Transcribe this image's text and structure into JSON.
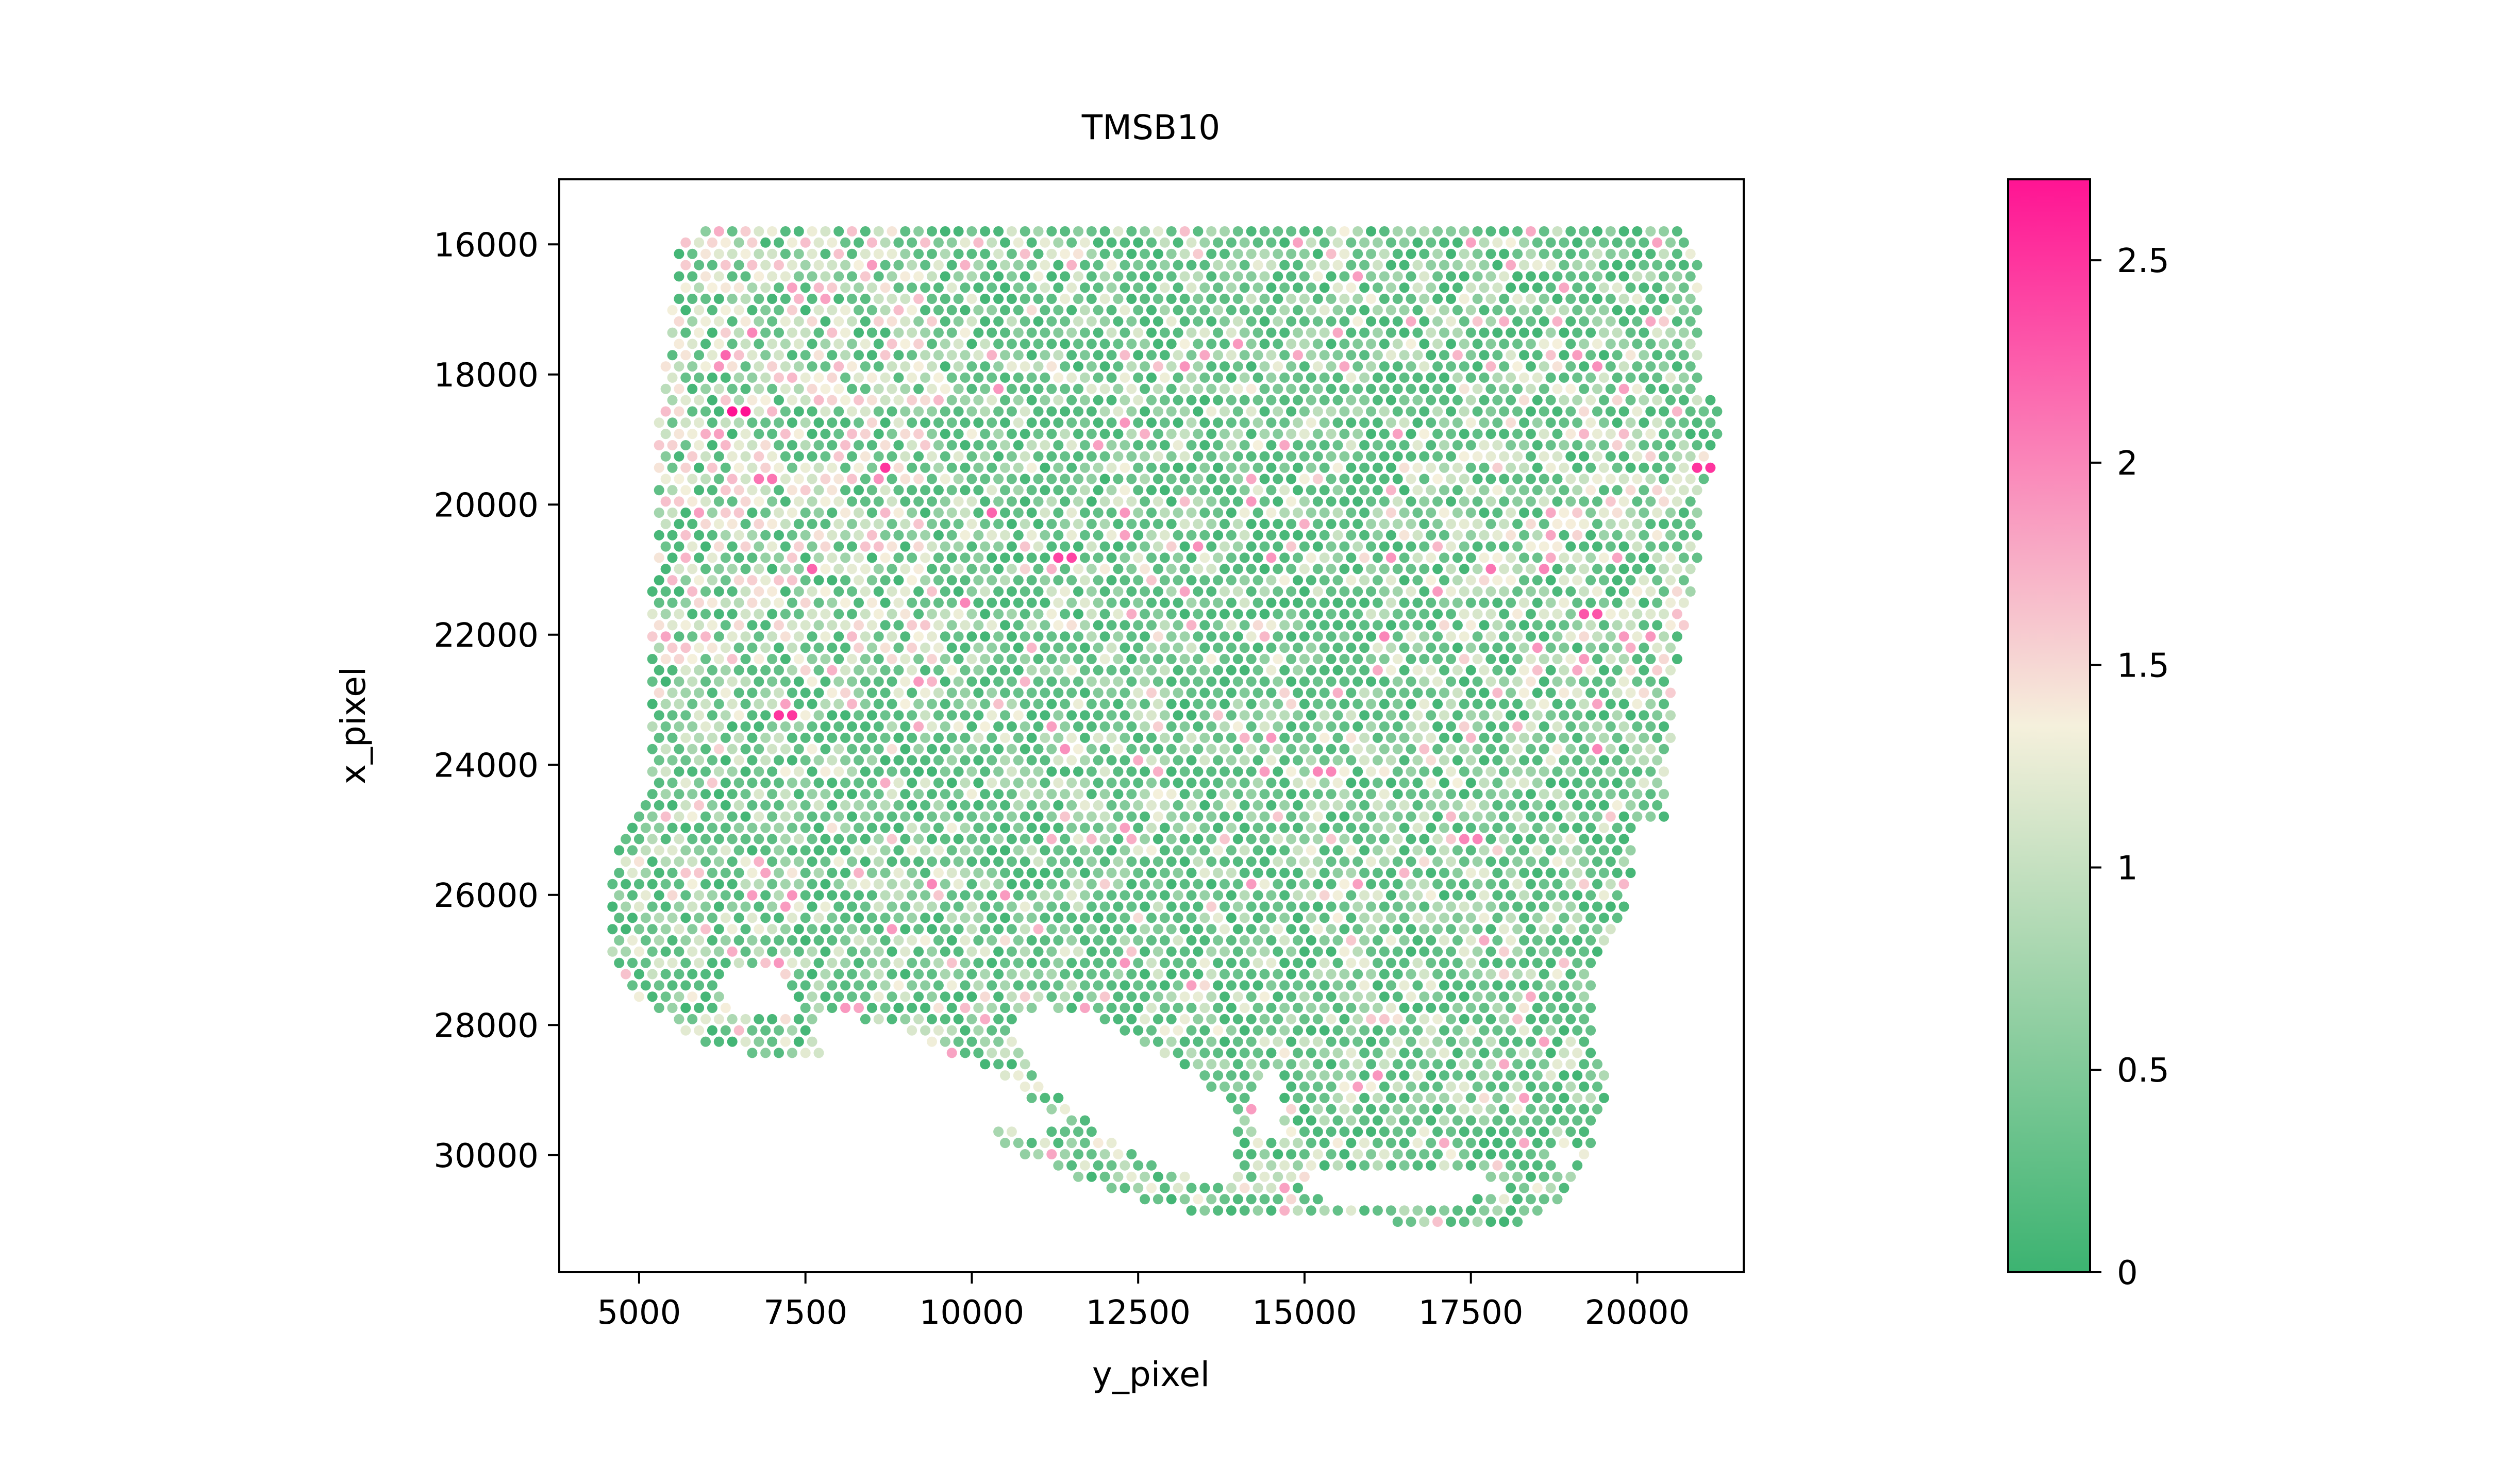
{
  "chart_data": {
    "type": "scatter",
    "title": "TMSB10",
    "xlabel": "y_pixel",
    "ylabel": "x_pixel",
    "xlim": [
      3800,
      21600
    ],
    "ylim": [
      31800,
      15000
    ],
    "y_inverted": true,
    "x_ticks": [
      5000,
      7500,
      10000,
      12500,
      15000,
      17500,
      20000
    ],
    "x_tick_labels": [
      "5000",
      "7500",
      "10000",
      "12500",
      "15000",
      "17500",
      "20000"
    ],
    "y_ticks": [
      16000,
      18000,
      20000,
      22000,
      24000,
      26000,
      28000,
      30000
    ],
    "y_tick_labels": [
      "16000",
      "18000",
      "20000",
      "22000",
      "24000",
      "26000",
      "28000",
      "30000"
    ],
    "grid": false,
    "point_style": "hexagonal grid of spots, spacing about 200 data units",
    "colorbar": {
      "min": 0,
      "max": 2.7,
      "ticks": [
        0,
        0.5,
        1,
        1.5,
        2,
        2.5
      ],
      "tick_labels": [
        "0",
        "0.5",
        "1",
        "1.5",
        "2",
        "2.5"
      ],
      "colors": [
        "#3cb371",
        "#f5f0dc",
        "#ff1493"
      ]
    },
    "tissue_outline": [
      [
        5300,
        18700
      ],
      [
        5600,
        16000
      ],
      [
        6000,
        15800
      ],
      [
        20700,
        15800
      ],
      [
        21000,
        16100
      ],
      [
        21000,
        18300
      ],
      [
        21300,
        18500
      ],
      [
        21200,
        19000
      ],
      [
        21000,
        19900
      ],
      [
        21000,
        20400
      ],
      [
        20800,
        21400
      ],
      [
        20600,
        22600
      ],
      [
        20500,
        23800
      ],
      [
        20400,
        24800
      ],
      [
        20000,
        25000
      ],
      [
        19800,
        26500
      ],
      [
        19400,
        27200
      ],
      [
        19400,
        28300
      ],
      [
        19600,
        28900
      ],
      [
        19300,
        30000
      ],
      [
        18800,
        30700
      ],
      [
        18200,
        31100
      ],
      [
        17500,
        31100
      ],
      [
        16600,
        31100
      ],
      [
        15700,
        30900
      ],
      [
        15000,
        30900
      ],
      [
        14000,
        31000
      ],
      [
        12500,
        30700
      ],
      [
        11000,
        30100
      ],
      [
        10500,
        29900
      ],
      [
        9500,
        28500
      ],
      [
        8700,
        28300
      ],
      [
        8200,
        28600
      ],
      [
        6900,
        28600
      ],
      [
        6500,
        28400
      ],
      [
        5800,
        28200
      ],
      [
        5000,
        27600
      ],
      [
        4600,
        27100
      ],
      [
        4500,
        26100
      ],
      [
        4700,
        25200
      ],
      [
        5200,
        24400
      ],
      [
        5100,
        21800
      ],
      [
        5300,
        20400
      ]
    ],
    "holes": [
      {
        "outline": [
          [
            6300,
            27200
          ],
          [
            6600,
            27100
          ],
          [
            7100,
            27200
          ],
          [
            7300,
            27400
          ],
          [
            7400,
            27600
          ],
          [
            7200,
            27900
          ],
          [
            6800,
            27900
          ],
          [
            6400,
            27700
          ],
          [
            6200,
            27500
          ]
        ]
      },
      {
        "outline": [
          [
            7500,
            28000
          ],
          [
            8000,
            27800
          ],
          [
            8700,
            28000
          ],
          [
            9200,
            28200
          ],
          [
            9800,
            28500
          ],
          [
            10600,
            28900
          ],
          [
            11400,
            29500
          ],
          [
            11000,
            29700
          ],
          [
            10200,
            29500
          ],
          [
            9200,
            29100
          ],
          [
            8300,
            28700
          ],
          [
            7700,
            28400
          ]
        ]
      },
      {
        "outline": [
          [
            10600,
            27900
          ],
          [
            11100,
            27700
          ],
          [
            11800,
            27900
          ],
          [
            12500,
            28300
          ],
          [
            13200,
            28700
          ],
          [
            13800,
            29100
          ],
          [
            14000,
            29700
          ],
          [
            14000,
            30300
          ],
          [
            13500,
            30400
          ],
          [
            12900,
            30200
          ],
          [
            12200,
            29800
          ],
          [
            11600,
            29400
          ],
          [
            11100,
            28900
          ],
          [
            10700,
            28400
          ]
        ]
      },
      {
        "outline": [
          [
            14300,
            28900
          ],
          [
            14500,
            28600
          ],
          [
            14700,
            29100
          ],
          [
            14600,
            29700
          ],
          [
            14300,
            29700
          ],
          [
            14200,
            29200
          ]
        ]
      },
      {
        "outline": [
          [
            14800,
            30400
          ],
          [
            15400,
            30200
          ],
          [
            16500,
            30200
          ],
          [
            17600,
            30300
          ],
          [
            18000,
            30500
          ],
          [
            17400,
            30700
          ],
          [
            16300,
            30700
          ],
          [
            15400,
            30700
          ]
        ]
      },
      {
        "outline": [
          [
            18700,
            30000
          ],
          [
            19000,
            29800
          ],
          [
            19100,
            30000
          ],
          [
            18900,
            30300
          ]
        ]
      }
    ],
    "expression_hotspots": [
      {
        "x": 6500,
        "y": 18600,
        "value": 2.7
      },
      {
        "x": 6300,
        "y": 17600,
        "value": 2.2
      },
      {
        "x": 6700,
        "y": 17400,
        "value": 2.0
      },
      {
        "x": 7400,
        "y": 18000,
        "value": 2.6
      },
      {
        "x": 6000,
        "y": 18000,
        "value": 2.0
      },
      {
        "x": 6900,
        "y": 19600,
        "value": 2.1
      },
      {
        "x": 7600,
        "y": 20900,
        "value": 2.2
      },
      {
        "x": 8700,
        "y": 19500,
        "value": 2.5
      },
      {
        "x": 10300,
        "y": 20100,
        "value": 2.2
      },
      {
        "x": 11400,
        "y": 20800,
        "value": 2.4
      },
      {
        "x": 7200,
        "y": 23200,
        "value": 2.5
      },
      {
        "x": 5300,
        "y": 24500,
        "value": 1.9
      },
      {
        "x": 9900,
        "y": 21400,
        "value": 2.0
      },
      {
        "x": 17800,
        "y": 18800,
        "value": 2.0
      },
      {
        "x": 17800,
        "y": 21000,
        "value": 2.1
      },
      {
        "x": 18600,
        "y": 21000,
        "value": 2.0
      },
      {
        "x": 19300,
        "y": 21700,
        "value": 2.3
      },
      {
        "x": 19500,
        "y": 19900,
        "value": 2.2
      },
      {
        "x": 21000,
        "y": 19400,
        "value": 2.5
      },
      {
        "x": 19400,
        "y": 23800,
        "value": 2.0
      },
      {
        "x": 15300,
        "y": 24100,
        "value": 2.0
      },
      {
        "x": 17500,
        "y": 25100,
        "value": 2.0
      },
      {
        "x": 16200,
        "y": 22100,
        "value": 2.0
      },
      {
        "x": 8100,
        "y": 25200,
        "value": 2.0
      },
      {
        "x": 9400,
        "y": 25800,
        "value": 2.0
      },
      {
        "x": 12300,
        "y": 18800,
        "value": 1.9
      },
      {
        "x": 13500,
        "y": 17800,
        "value": 1.8
      },
      {
        "x": 14700,
        "y": 19000,
        "value": 1.8
      },
      {
        "x": 16300,
        "y": 20800,
        "value": 1.9
      },
      {
        "x": 20200,
        "y": 22000,
        "value": 1.9
      },
      {
        "x": 16500,
        "y": 25700,
        "value": 1.7
      },
      {
        "x": 12400,
        "y": 26900,
        "value": 1.6
      },
      {
        "x": 13800,
        "y": 25100,
        "value": 1.6
      },
      {
        "x": 10900,
        "y": 22100,
        "value": 1.7
      },
      {
        "x": 12700,
        "y": 21200,
        "value": 1.6
      },
      {
        "x": 18200,
        "y": 23500,
        "value": 1.7
      },
      {
        "x": 6000,
        "y": 22100,
        "value": 1.7
      },
      {
        "x": 5800,
        "y": 25700,
        "value": 1.6
      }
    ]
  }
}
